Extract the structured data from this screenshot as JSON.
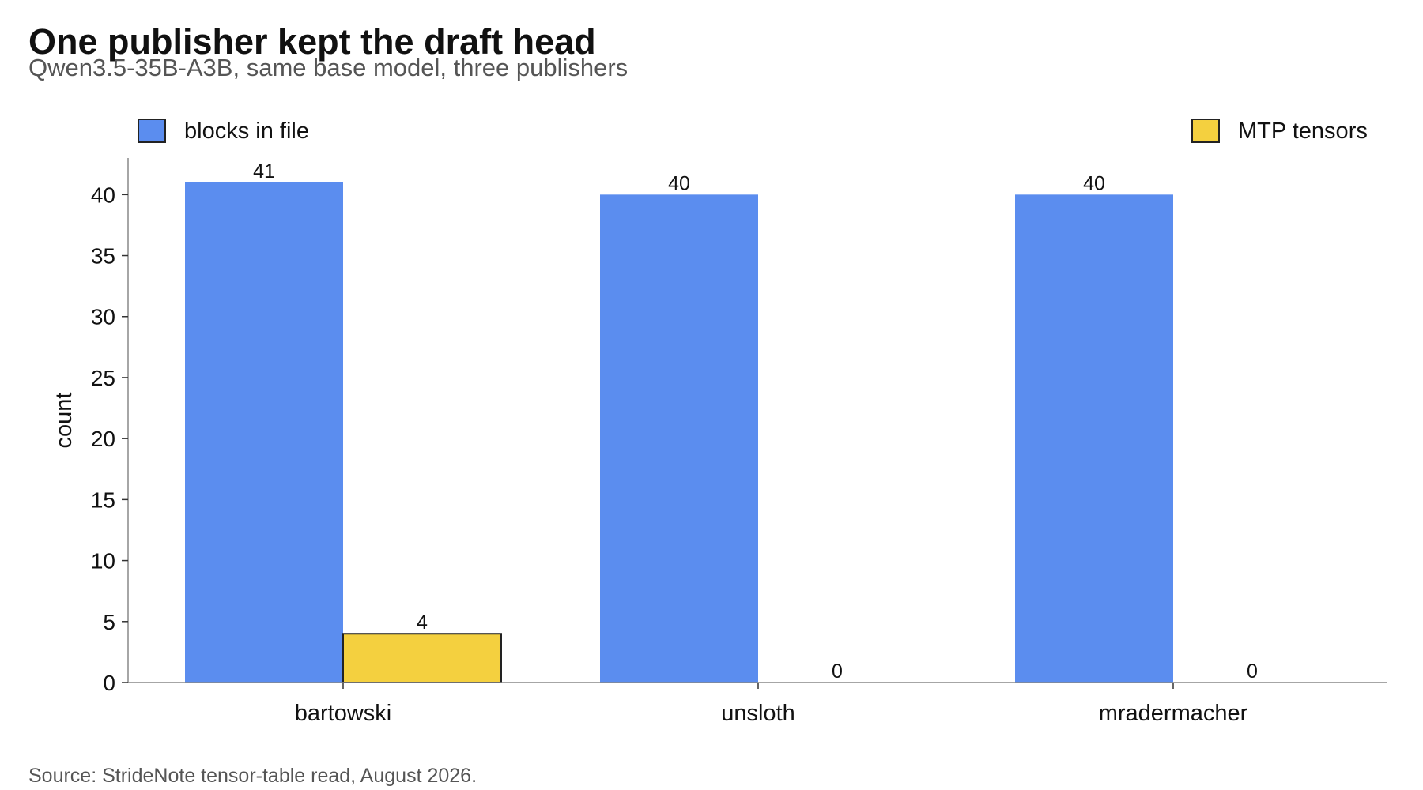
{
  "chart_data": {
    "type": "bar",
    "title": "One publisher kept the draft head",
    "subtitle": "Qwen3.5-35B-A3B, same base model, three publishers",
    "ylabel": "count",
    "xlabel": "",
    "categories": [
      "bartowski",
      "unsloth",
      "mradermacher"
    ],
    "series": [
      {
        "name": "blocks in file",
        "values": [
          41,
          40,
          40
        ],
        "color": "#5b8def"
      },
      {
        "name": "MTP tensors",
        "values": [
          4,
          0,
          0
        ],
        "color": "#f4d03f"
      }
    ],
    "ylim": [
      0,
      43
    ],
    "yticks": [
      0,
      5,
      10,
      15,
      20,
      25,
      30,
      35,
      40
    ],
    "grid": false,
    "legend_placement": "top, split left and right",
    "source": "Source: StrideNote tensor-table read, August 2026."
  }
}
